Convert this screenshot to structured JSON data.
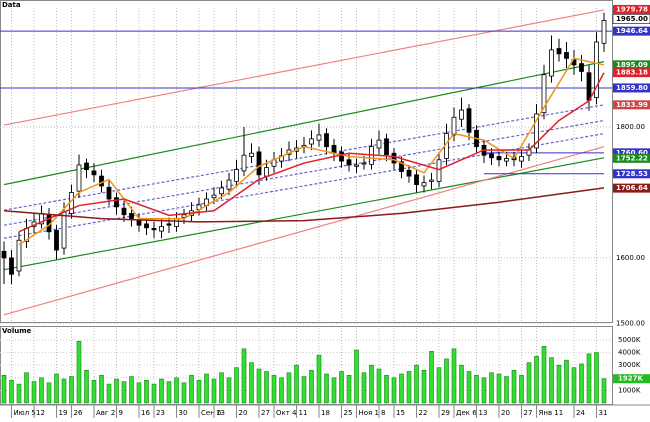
{
  "chart_data": [
    {
      "type": "candlestick",
      "title": "Data",
      "categories": [
        null,
        "Июл 5",
        null,
        null,
        "12",
        null,
        null,
        "19",
        null,
        "26",
        null,
        null,
        "Авг 2",
        null,
        null,
        "9",
        null,
        null,
        "16",
        null,
        "23",
        null,
        null,
        "30",
        null,
        null,
        "Сен 6",
        null,
        "13",
        null,
        null,
        "20",
        null,
        null,
        "27",
        null,
        "Окт 4",
        null,
        null,
        "11",
        null,
        null,
        "18",
        null,
        null,
        "25",
        null,
        "Ноя 1",
        null,
        null,
        "8",
        null,
        "15",
        null,
        null,
        "22",
        null,
        null,
        "29",
        null,
        "Дек 6",
        null,
        null,
        "13",
        null,
        null,
        "20",
        null,
        null,
        "27",
        null,
        "Янв 11",
        null,
        null,
        null,
        null,
        "24",
        null,
        null,
        "31",
        null
      ],
      "open": [
        1610,
        1600,
        1580,
        1625,
        1648,
        1652,
        1665,
        1642,
        1615,
        1668,
        1702,
        1745,
        1733,
        1725,
        1708,
        1692,
        1676,
        1668,
        1658,
        1652,
        1645,
        1641,
        1652,
        1648,
        1662,
        1665,
        1674,
        1680,
        1692,
        1698,
        1705,
        1717,
        1733,
        1755,
        1762,
        1725,
        1740,
        1748,
        1758,
        1763,
        1770,
        1774,
        1780,
        1790,
        1772,
        1762,
        1750,
        1740,
        1744,
        1743,
        1768,
        1782,
        1760,
        1747,
        1734,
        1727,
        1710,
        1717,
        1717,
        1752,
        1788,
        1812,
        1828,
        1795,
        1772,
        1759,
        1755,
        1748,
        1754,
        1748,
        1757,
        1768,
        1822,
        1878,
        1920,
        1914,
        1903,
        1897,
        1883,
        1845,
        1928
      ],
      "high": [
        1625,
        1612,
        1640,
        1660,
        1668,
        1680,
        1676,
        1650,
        1685,
        1712,
        1758,
        1752,
        1745,
        1735,
        1718,
        1700,
        1688,
        1678,
        1668,
        1660,
        1655,
        1660,
        1662,
        1670,
        1675,
        1685,
        1692,
        1700,
        1708,
        1718,
        1730,
        1750,
        1800,
        1775,
        1770,
        1750,
        1762,
        1768,
        1778,
        1780,
        1785,
        1795,
        1805,
        1798,
        1782,
        1770,
        1760,
        1752,
        1756,
        1782,
        1795,
        1790,
        1768,
        1755,
        1742,
        1735,
        1726,
        1730,
        1762,
        1805,
        1830,
        1845,
        1835,
        1803,
        1780,
        1768,
        1762,
        1762,
        1762,
        1765,
        1775,
        1835,
        1895,
        1940,
        1935,
        1930,
        1918,
        1910,
        1895,
        1945,
        1975
      ],
      "low": [
        1560,
        1560,
        1572,
        1615,
        1638,
        1645,
        1628,
        1598,
        1605,
        1660,
        1692,
        1722,
        1716,
        1700,
        1680,
        1666,
        1655,
        1648,
        1640,
        1635,
        1630,
        1630,
        1638,
        1640,
        1652,
        1655,
        1665,
        1672,
        1682,
        1690,
        1696,
        1708,
        1725,
        1745,
        1712,
        1718,
        1730,
        1738,
        1748,
        1752,
        1760,
        1765,
        1770,
        1758,
        1748,
        1738,
        1732,
        1730,
        1735,
        1735,
        1758,
        1748,
        1735,
        1722,
        1715,
        1700,
        1700,
        1705,
        1708,
        1742,
        1778,
        1800,
        1780,
        1760,
        1745,
        1742,
        1740,
        1740,
        1740,
        1738,
        1748,
        1760,
        1812,
        1868,
        1900,
        1890,
        1880,
        1870,
        1825,
        1835,
        1915
      ],
      "close": [
        1600,
        1575,
        1627,
        1645,
        1655,
        1668,
        1640,
        1612,
        1670,
        1700,
        1742,
        1735,
        1727,
        1710,
        1690,
        1678,
        1666,
        1660,
        1650,
        1646,
        1643,
        1648,
        1650,
        1660,
        1666,
        1672,
        1681,
        1690,
        1696,
        1707,
        1719,
        1735,
        1757,
        1760,
        1727,
        1738,
        1750,
        1756,
        1765,
        1768,
        1772,
        1782,
        1788,
        1770,
        1760,
        1748,
        1742,
        1742,
        1745,
        1770,
        1780,
        1758,
        1745,
        1732,
        1725,
        1712,
        1715,
        1719,
        1750,
        1790,
        1815,
        1826,
        1792,
        1770,
        1757,
        1753,
        1750,
        1752,
        1750,
        1755,
        1765,
        1820,
        1880,
        1918,
        1912,
        1905,
        1895,
        1885,
        1841,
        1930,
        1963
      ],
      "ylim": [
        1502,
        1982
      ],
      "yticks": [
        {
          "value": 1500,
          "label": "1500.00"
        },
        {
          "value": 1600,
          "label": "1600.00"
        },
        {
          "value": 1800,
          "label": "1800.00"
        }
      ],
      "grid": true,
      "overlays": [
        {
          "color": "#f0961e",
          "x": [
            2,
            6,
            10,
            14,
            18,
            24,
            30,
            34,
            40,
            46,
            52,
            56,
            60,
            64,
            68,
            72,
            76,
            80
          ],
          "values": [
            1620,
            1650,
            1700,
            1720,
            1660,
            1660,
            1700,
            1740,
            1770,
            1755,
            1750,
            1730,
            1790,
            1780,
            1752,
            1830,
            1905,
            1895
          ]
        },
        {
          "color": "#e0202a",
          "x": [
            2,
            10,
            16,
            22,
            28,
            34,
            40,
            46,
            52,
            58,
            64,
            70,
            74,
            78,
            80
          ],
          "values": [
            1640,
            1680,
            1690,
            1665,
            1672,
            1720,
            1745,
            1760,
            1755,
            1735,
            1765,
            1765,
            1810,
            1840,
            1883
          ]
        },
        {
          "color": "#8b1a1a",
          "x": [
            0,
            13,
            26,
            40,
            53,
            66,
            80
          ],
          "values": [
            1672,
            1660,
            1655,
            1657,
            1668,
            1685,
            1707
          ]
        }
      ],
      "trendlines": [
        {
          "color": "#1a8a1a",
          "x": [
            0,
            80
          ],
          "values": [
            1712,
            1900
          ]
        },
        {
          "color": "#1a8a1a",
          "x": [
            0,
            80
          ],
          "values": [
            1582,
            1753
          ]
        },
        {
          "color": "#f08080",
          "x": [
            0,
            80
          ],
          "values": [
            1803,
            1979
          ]
        },
        {
          "color": "#f08080",
          "x": [
            0,
            80
          ],
          "values": [
            1513,
            1770
          ]
        },
        {
          "color": "#6666cc",
          "dash": true,
          "x": [
            0,
            80
          ],
          "values": [
            1673,
            1834
          ]
        },
        {
          "color": "#6666cc",
          "dash": true,
          "x": [
            0,
            80
          ],
          "values": [
            1650,
            1810
          ]
        },
        {
          "color": "#6666cc",
          "dash": true,
          "x": [
            0,
            80
          ],
          "values": [
            1630,
            1790
          ]
        }
      ],
      "levels": [
        {
          "value": 1979.78,
          "label": "1979.78",
          "color": "#e0202a"
        },
        {
          "value": 1965,
          "label": "1965.00",
          "color": "#ffffff"
        },
        {
          "value": 1946.64,
          "color": "#3333cc",
          "line": true
        },
        {
          "value": 1895.09,
          "color": "#1a8a1a"
        },
        {
          "value": 1883.18,
          "color": "#e0202a"
        },
        {
          "value": 1859.8,
          "label": "1859.80",
          "color": "#3333cc",
          "line": true
        },
        {
          "value": 1833.99,
          "color": "#cc4444"
        },
        {
          "value": 1760.6,
          "label": "1760.60",
          "color": "#3333cc",
          "x": [
            64,
            80
          ]
        },
        {
          "value": 1752.22,
          "color": "#1a8a1a"
        },
        {
          "value": 1728.53,
          "color": "#3333cc",
          "x": [
            64,
            80
          ]
        },
        {
          "value": 1706.64,
          "color": "#8b1a1a"
        }
      ]
    },
    {
      "type": "bar",
      "title": "Volume",
      "color": "#33dd33",
      "values": [
        2200,
        1800,
        1500,
        2400,
        1700,
        2000,
        1600,
        2300,
        1900,
        2100,
        4900,
        2600,
        1800,
        2200,
        1500,
        1900,
        1700,
        2100,
        1600,
        1800,
        1500,
        1900,
        1700,
        2000,
        1600,
        2200,
        1800,
        2300,
        1900,
        2400,
        2000,
        2800,
        4300,
        3200,
        2700,
        2500,
        2200,
        2000,
        2400,
        3000,
        2100,
        2600,
        3800,
        2300,
        2000,
        2500,
        2200,
        4200,
        2400,
        3000,
        2700,
        2200,
        2000,
        2300,
        2500,
        3000,
        2600,
        4100,
        2800,
        3500,
        4300,
        3000,
        2500,
        2200,
        2000,
        2400,
        2300,
        2100,
        2600,
        2200,
        3200,
        3700,
        4500,
        3600,
        3000,
        3400,
        2800,
        3100,
        3900,
        4000,
        1927
      ],
      "ylim": [
        0,
        5950
      ],
      "yticks": [
        {
          "value": 1000,
          "label": "1000K"
        },
        {
          "value": 2000,
          "label": "2000K"
        },
        {
          "value": 3000,
          "label": "3000K"
        },
        {
          "value": 4000,
          "label": "4000K"
        },
        {
          "value": 5000,
          "label": "5000K"
        }
      ],
      "levels": [
        {
          "value": 1927,
          "label": "1927K",
          "color": "#22bb22"
        }
      ]
    }
  ]
}
